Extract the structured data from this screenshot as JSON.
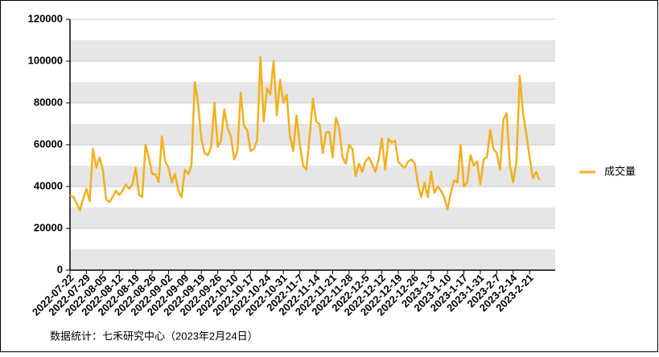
{
  "chart_data": {
    "type": "line",
    "footnote": "数据统计：七禾研究中心（2023年2月24日）",
    "categories": [
      "2022-07-22",
      null,
      null,
      null,
      null,
      "2022-07-29",
      null,
      null,
      null,
      null,
      "2022-08-05",
      null,
      null,
      null,
      null,
      "2022-08-12",
      null,
      null,
      null,
      null,
      "2022-08-19",
      null,
      null,
      null,
      null,
      "2022-08-26",
      null,
      null,
      null,
      null,
      "2022-09-02",
      null,
      null,
      null,
      null,
      "2022-09-09",
      null,
      null,
      null,
      null,
      "2022-09-19",
      null,
      null,
      null,
      null,
      "2022-09-26",
      null,
      null,
      null,
      null,
      "2022-10-10",
      null,
      null,
      null,
      null,
      "2022-10-17",
      null,
      null,
      null,
      null,
      "2022-10-24",
      null,
      null,
      null,
      null,
      "2022-10-31",
      null,
      null,
      null,
      null,
      "2022-11-7",
      null,
      null,
      null,
      null,
      "2022-11-14",
      null,
      null,
      null,
      null,
      "2022-11-21",
      null,
      null,
      null,
      null,
      "2022-11-28",
      null,
      null,
      null,
      null,
      "2022-12-5",
      null,
      null,
      null,
      null,
      "2022-12-12",
      null,
      null,
      null,
      null,
      "2022-12-19",
      null,
      null,
      null,
      null,
      "2022-12-26",
      null,
      null,
      null,
      null,
      "2023-1-3",
      null,
      null,
      null,
      null,
      "2023-1-10",
      null,
      null,
      null,
      null,
      "2023-1-17",
      null,
      null,
      null,
      null,
      "2023-1-31",
      null,
      null,
      null,
      null,
      "2023-2-7",
      null,
      null,
      null,
      null,
      "2023-2-14",
      null,
      null,
      null,
      null,
      "2023-2-21",
      null,
      null,
      null
    ],
    "series": [
      {
        "name": "成交量",
        "color": "#f2b01e",
        "values": [
          36000,
          35000,
          32000,
          28500,
          34000,
          39000,
          33000,
          58000,
          49000,
          54000,
          48000,
          34000,
          32500,
          35000,
          38000,
          36000,
          38000,
          41000,
          39000,
          41000,
          49000,
          36000,
          35000,
          60000,
          54000,
          46000,
          46000,
          42000,
          64000,
          52000,
          49000,
          42000,
          46000,
          38000,
          35000,
          48000,
          46000,
          50000,
          90000,
          80000,
          63000,
          56000,
          55000,
          59000,
          80000,
          59000,
          62000,
          77000,
          68000,
          64000,
          53000,
          57000,
          85000,
          69000,
          67000,
          57000,
          58000,
          62000,
          102000,
          71000,
          87000,
          84000,
          100000,
          74000,
          91000,
          80000,
          84000,
          64000,
          57000,
          74000,
          60000,
          50000,
          48000,
          64000,
          82000,
          71000,
          70000,
          56000,
          66000,
          66000,
          54000,
          73000,
          68000,
          54000,
          51000,
          60000,
          58000,
          45000,
          51000,
          47000,
          52000,
          54000,
          51000,
          47000,
          53000,
          63000,
          48000,
          63000,
          61000,
          62000,
          52000,
          50000,
          49000,
          52000,
          53000,
          51000,
          41000,
          35000,
          42000,
          35000,
          47000,
          37000,
          40000,
          38000,
          35000,
          29000,
          37000,
          43000,
          42000,
          60000,
          40000,
          42000,
          55000,
          50000,
          52000,
          41000,
          53000,
          54000,
          67000,
          58000,
          56000,
          48000,
          72000,
          75000,
          50000,
          42000,
          52000,
          93000,
          75000,
          65000,
          54000,
          44000,
          47000,
          43000
        ]
      }
    ],
    "ylim": [
      0,
      120000
    ],
    "yticks": [
      0,
      20000,
      40000,
      60000,
      80000,
      100000,
      120000
    ],
    "grid": true,
    "legend": "right"
  }
}
